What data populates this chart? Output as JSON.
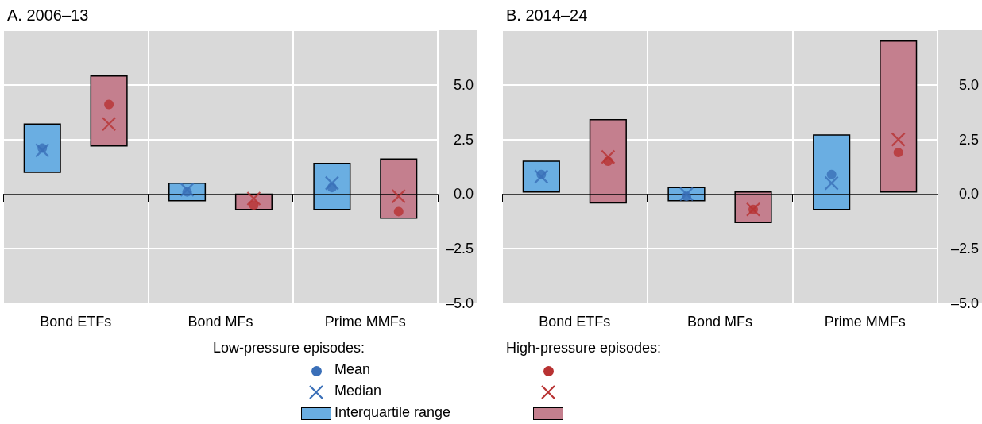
{
  "chart_data": [
    {
      "type": "bar",
      "title": "A. 2006–13",
      "categories": [
        "Bond ETFs",
        "Bond MFs",
        "Prime MMFs"
      ],
      "ylim": [
        -5,
        7.5
      ],
      "yticks": [
        {
          "value": -5,
          "label": "–5.0"
        },
        {
          "value": -2.5,
          "label": "–2.5"
        },
        {
          "value": 0,
          "label": "0.0"
        },
        {
          "value": 2.5,
          "label": "2.5"
        },
        {
          "value": 5,
          "label": "5.0"
        }
      ],
      "grid": true,
      "legend": "bottom",
      "legend_title": "Low-pressure episodes:",
      "ref_lines": [
        {
          "axis": "y",
          "value": 0,
          "color": "#000000"
        }
      ],
      "series": [
        {
          "type": "scatter",
          "name": "Mean",
          "marker": "circle",
          "color": "#3a6fb8",
          "values": [
            2.1,
            0.1,
            0.3
          ]
        },
        {
          "type": "scatter",
          "name": "Median",
          "marker": "cross",
          "color": "#3a6fb8",
          "values": [
            2.0,
            0.2,
            0.5
          ]
        },
        {
          "type": "bar",
          "name": "Interquartile range",
          "color": "#6aaee2",
          "base": [
            1.0,
            -0.3,
            -0.7
          ],
          "values": [
            2.2,
            0.8,
            2.1
          ]
        },
        {
          "type": "scatter",
          "marker": "circle",
          "color": "#b83232",
          "values": [
            4.1,
            -0.5,
            -0.8
          ]
        },
        {
          "type": "scatter",
          "marker": "cross",
          "color": "#b83232",
          "values": [
            3.2,
            -0.2,
            -0.1
          ]
        },
        {
          "type": "bar",
          "color": "#c47f8e",
          "base": [
            2.2,
            -0.7,
            -1.1
          ],
          "values": [
            3.2,
            0.7,
            2.7
          ]
        }
      ]
    },
    {
      "type": "bar",
      "title": "B. 2014–24",
      "categories": [
        "Bond ETFs",
        "Bond MFs",
        "Prime MMFs"
      ],
      "ylim": [
        -5,
        7.5
      ],
      "yticks": [
        {
          "value": -5,
          "label": "–5.0"
        },
        {
          "value": -2.5,
          "label": "–2.5"
        },
        {
          "value": 0,
          "label": "0.0"
        },
        {
          "value": 2.5,
          "label": "2.5"
        },
        {
          "value": 5,
          "label": "5.0"
        }
      ],
      "grid": true,
      "legend_title": "High-pressure episodes:",
      "ref_lines": [
        {
          "axis": "y",
          "value": 0,
          "color": "#000000"
        }
      ],
      "series": [
        {
          "type": "scatter",
          "marker": "circle",
          "color": "#3a6fb8",
          "values": [
            0.9,
            -0.1,
            0.9
          ]
        },
        {
          "type": "scatter",
          "marker": "cross",
          "color": "#3a6fb8",
          "values": [
            0.8,
            0.0,
            0.5
          ]
        },
        {
          "type": "bar",
          "color": "#6aaee2",
          "base": [
            0.1,
            -0.3,
            -0.7
          ],
          "values": [
            1.4,
            0.6,
            3.4
          ]
        },
        {
          "type": "scatter",
          "marker": "circle",
          "color": "#b83232",
          "values": [
            1.5,
            -0.7,
            1.9
          ]
        },
        {
          "type": "scatter",
          "marker": "cross",
          "color": "#b83232",
          "values": [
            1.7,
            -0.7,
            2.5
          ]
        },
        {
          "type": "bar",
          "color": "#c47f8e",
          "base": [
            -0.4,
            -1.3,
            0.1
          ],
          "values": [
            3.8,
            1.4,
            6.9
          ]
        }
      ]
    }
  ]
}
